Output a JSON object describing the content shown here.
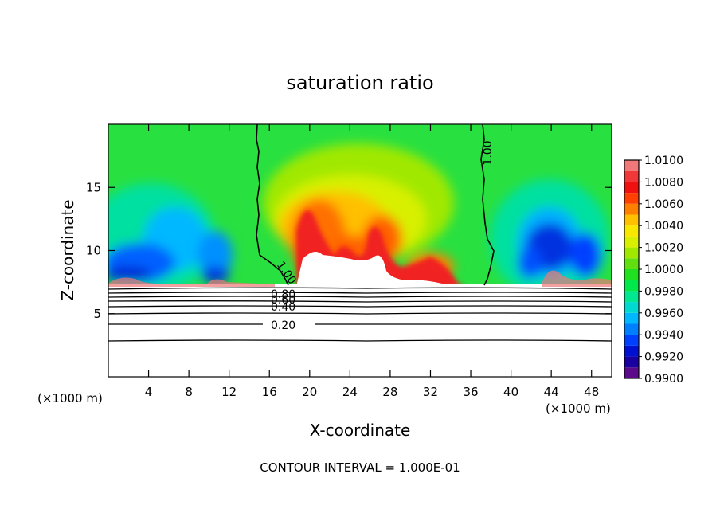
{
  "chart_data": {
    "type": "heatmap",
    "title": "saturation ratio",
    "xlabel": "X-coordinate",
    "ylabel": "Z-coordinate",
    "x_unit": "(×1000 m)",
    "xlim": [
      0,
      50
    ],
    "ylim": [
      0,
      20
    ],
    "x_ticks": [
      4,
      8,
      12,
      16,
      20,
      24,
      28,
      32,
      36,
      40,
      44,
      48
    ],
    "y_ticks": [
      5,
      10,
      15
    ],
    "colorbar": {
      "min": 0.99,
      "max": 1.01,
      "levels": [
        0.99,
        0.991,
        0.992,
        0.993,
        0.994,
        0.995,
        0.996,
        0.997,
        0.998,
        0.999,
        1.0,
        1.001,
        1.002,
        1.003,
        1.004,
        1.005,
        1.006,
        1.007,
        1.008,
        1.009,
        1.01
      ],
      "tick_labels": [
        "1.0100",
        "1.0080",
        "1.0060",
        "1.0040",
        "1.0020",
        "1.0000",
        "0.9980",
        "0.9960",
        "0.9940",
        "0.9920",
        "0.9900"
      ],
      "colors": [
        "#5a0a8a",
        "#1a00a0",
        "#0010d0",
        "#0040ff",
        "#0080ff",
        "#00b8ff",
        "#00d8d0",
        "#00e890",
        "#00e84a",
        "#20e020",
        "#60e010",
        "#a0e800",
        "#d8f000",
        "#f8e800",
        "#ffc000",
        "#ff8000",
        "#ff4000",
        "#f01010",
        "#f03838",
        "#f07878",
        "#f4a0a0"
      ]
    },
    "contours": [
      {
        "label": "0.20",
        "z": 4.2
      },
      {
        "label": "0.40",
        "z": 5.6
      },
      {
        "label": "0.60",
        "z": 6.1
      },
      {
        "label": "0.80",
        "z": 6.6
      },
      {
        "label": "1.00",
        "z": 7.2
      }
    ],
    "contour_interval": "CONTOUR INTERVAL = 1.000E-01"
  }
}
